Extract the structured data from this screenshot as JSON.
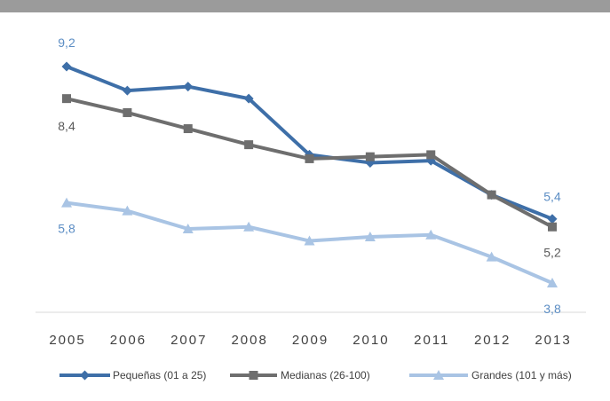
{
  "chart_data": {
    "type": "line",
    "x": [
      "2005",
      "2006",
      "2007",
      "2008",
      "2009",
      "2010",
      "2011",
      "2012",
      "2013"
    ],
    "series": [
      {
        "name": "Pequeñas (01 a 25)",
        "values": [
          9.2,
          8.6,
          8.7,
          8.4,
          7.0,
          6.8,
          6.85,
          6.0,
          5.4
        ],
        "color": "#3e6fa8",
        "marker": "diamond"
      },
      {
        "name": "Medianas (26-100)",
        "values": [
          8.4,
          8.05,
          7.65,
          7.25,
          6.9,
          6.95,
          7.0,
          6.0,
          5.2
        ],
        "color": "#6e6e6e",
        "marker": "square"
      },
      {
        "name": "Grandes (101 y más)",
        "values": [
          5.8,
          5.6,
          5.15,
          5.2,
          4.85,
          4.95,
          5.0,
          4.45,
          3.8
        ],
        "color": "#a9c4e4",
        "marker": "triangle"
      }
    ],
    "data_labels": [
      {
        "series": 0,
        "point": 0,
        "text": "9,2",
        "pos": "above"
      },
      {
        "series": 1,
        "point": 0,
        "text": "8,4",
        "pos": "below"
      },
      {
        "series": 2,
        "point": 0,
        "text": "5,8",
        "pos": "below"
      },
      {
        "series": 0,
        "point": 8,
        "text": "5,4",
        "pos": "above"
      },
      {
        "series": 1,
        "point": 8,
        "text": "5,2",
        "pos": "below"
      },
      {
        "series": 2,
        "point": 8,
        "text": "3,8",
        "pos": "below"
      }
    ],
    "ylim": [
      3.5,
      9.7
    ],
    "grid": false,
    "legend": "bottom",
    "label_colors": {
      "blue_labels": "#5b8dc4",
      "gray_labels": "#595959"
    }
  }
}
